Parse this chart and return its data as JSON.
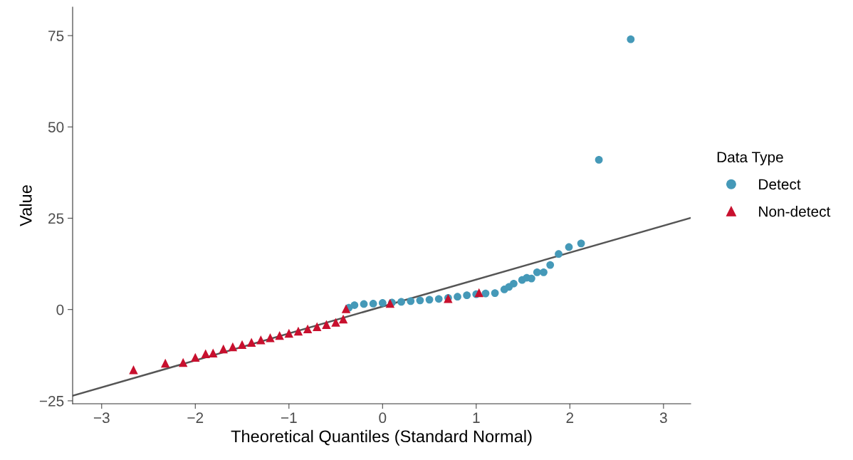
{
  "chart_data": {
    "type": "scatter",
    "xlabel": "Theoretical Quantiles (Standard Normal)",
    "ylabel": "Value",
    "legend_title": "Data Type",
    "legend": "right",
    "grid": false,
    "xlim": [
      -3.31,
      3.29
    ],
    "xticks": [
      {
        "value": -3,
        "label": "−3"
      },
      {
        "value": -2,
        "label": "−2"
      },
      {
        "value": -1,
        "label": "−1"
      },
      0,
      1,
      2,
      3
    ],
    "ylim": [
      -25.8,
      82.8
    ],
    "yticks": [
      {
        "value": -25,
        "label": "−25"
      },
      0,
      25,
      50,
      75
    ],
    "series": [
      {
        "name": "Detect",
        "marker": "circle",
        "color": "#4599b8",
        "x": [
          -0.36,
          -0.3,
          -0.2,
          -0.1,
          0,
          0.1,
          0.2,
          0.3,
          0.4,
          0.5,
          0.6,
          0.7,
          0.8,
          0.9,
          1.0,
          1.1,
          1.2,
          1.3,
          1.35,
          1.4,
          1.49,
          1.54,
          1.59,
          1.65,
          1.72,
          1.79,
          1.88,
          1.99,
          2.12,
          2.31,
          2.65
        ],
        "values": [
          0.5,
          1.2,
          1.5,
          1.6,
          1.8,
          1.9,
          2.1,
          2.3,
          2.5,
          2.7,
          2.9,
          3.2,
          3.5,
          3.9,
          4.2,
          4.4,
          4.5,
          5.5,
          6.2,
          7.1,
          8.1,
          8.7,
          8.5,
          10.2,
          10.2,
          12.2,
          15.2,
          17.1,
          18.1,
          41.0,
          74.0
        ]
      },
      {
        "name": "Non-detect",
        "marker": "triangle",
        "color": "#c8102e",
        "x": [
          -2.66,
          -2.32,
          -2.13,
          -2.0,
          -1.89,
          -1.81,
          -1.7,
          -1.6,
          -1.5,
          -1.4,
          -1.3,
          -1.2,
          -1.1,
          -1.0,
          -0.9,
          -0.8,
          -0.7,
          -0.6,
          -0.5,
          -0.42,
          -0.39,
          0.08,
          0.7,
          1.03
        ],
        "values": [
          -16.5,
          -14.7,
          -14.5,
          -13.1,
          -12.1,
          -11.9,
          -10.8,
          -10.2,
          -9.6,
          -9.0,
          -8.3,
          -7.7,
          -7.1,
          -6.5,
          -5.9,
          -5.3,
          -4.7,
          -4.1,
          -3.5,
          -2.6,
          0.2,
          1.7,
          3.0,
          4.6
        ]
      },
      {
        "type": "line",
        "marker": "none",
        "color": "#555555",
        "x": [
          -3.31,
          3.29
        ],
        "values": [
          -23.6,
          25.1
        ]
      }
    ]
  }
}
